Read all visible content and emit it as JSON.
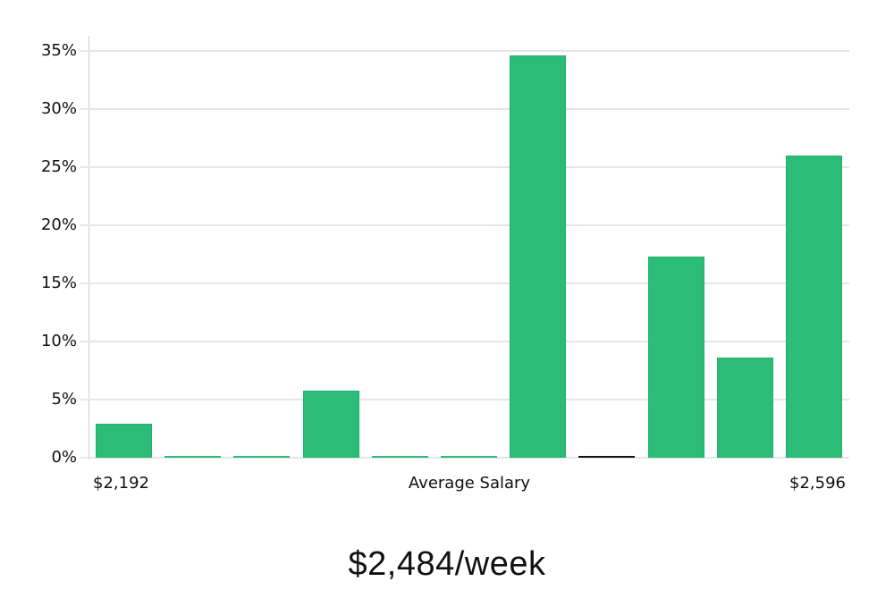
{
  "chart_data": {
    "type": "bar",
    "title": "",
    "xlabel": "Average Salary",
    "ylabel": "",
    "x_range_labels": {
      "min": "$2,192",
      "max": "$2,596"
    },
    "categories": [
      "bin1",
      "bin2",
      "bin3",
      "bin4",
      "bin5",
      "bin6",
      "bin7",
      "bin8",
      "bin9",
      "bin10",
      "bin11"
    ],
    "values": [
      2.9,
      0,
      0,
      5.8,
      0,
      0,
      34.6,
      0,
      17.3,
      8.6,
      26.0
    ],
    "marked_bin_index": 7,
    "ylim": [
      0,
      35
    ],
    "yticks": [
      "0%",
      "5%",
      "10%",
      "15%",
      "20%",
      "25%",
      "30%",
      "35%"
    ],
    "grid": true,
    "bar_color": "#2bbd77"
  },
  "summary": {
    "value": "$2,484/week"
  }
}
